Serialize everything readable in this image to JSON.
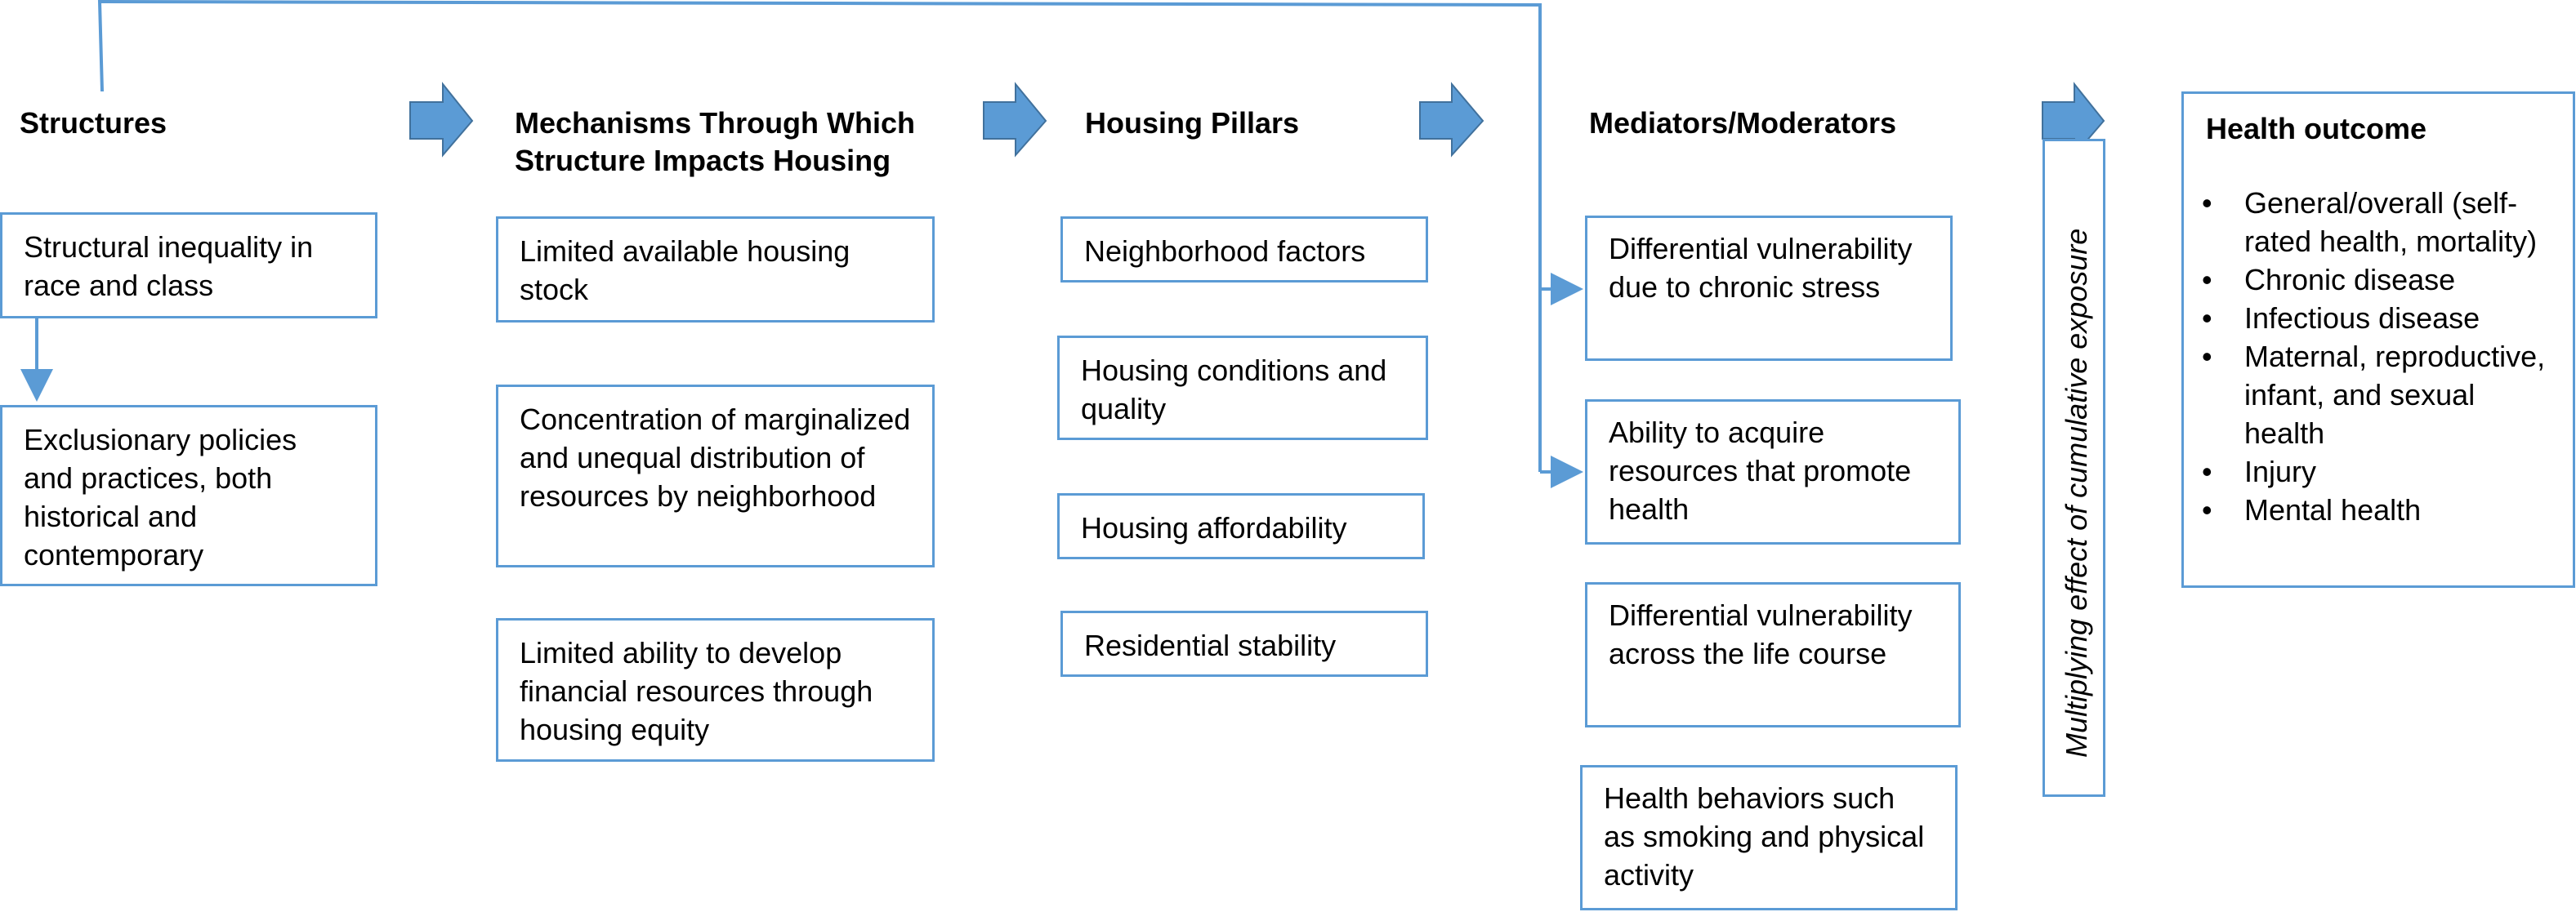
{
  "columns": {
    "structures": {
      "header": "Structures",
      "items": [
        "Structural inequality in race and class",
        "Exclusionary policies and practices, both historical and contemporary"
      ]
    },
    "mechanisms": {
      "header_line1": "Mechanisms Through Which",
      "header_line2": "Structure Impacts Housing",
      "items": [
        "Limited available housing stock",
        "Concentration of marginalized and unequal distribution of resources by neighborhood",
        "Limited ability to develop financial resources through housing equity"
      ]
    },
    "pillars": {
      "header": "Housing Pillars",
      "items": [
        "Neighborhood factors",
        "Housing conditions and quality",
        "Housing affordability",
        "Residential stability"
      ]
    },
    "mediators": {
      "header": "Mediators/Moderators",
      "items": [
        "Differential vulnerability due to chronic stress",
        "Ability to acquire resources that promote health",
        "Differential vulnerability across the life course",
        "Health behaviors such as smoking and physical activity"
      ]
    },
    "multiplier": {
      "label": "Multiplying effect of cumulative exposure"
    },
    "outcome": {
      "header": "Health outcome",
      "items": [
        "General/overall (self-rated health, mortality)",
        "Chronic disease",
        "Infectious disease",
        "Maternal, reproductive, infant, and sexual health",
        "Injury",
        "Mental health"
      ]
    }
  },
  "colors": {
    "border": "#5b9bd5",
    "arrow_fill": "#5b9bd5",
    "arrow_stroke": "#41719c",
    "connector": "#5b9bd5"
  }
}
